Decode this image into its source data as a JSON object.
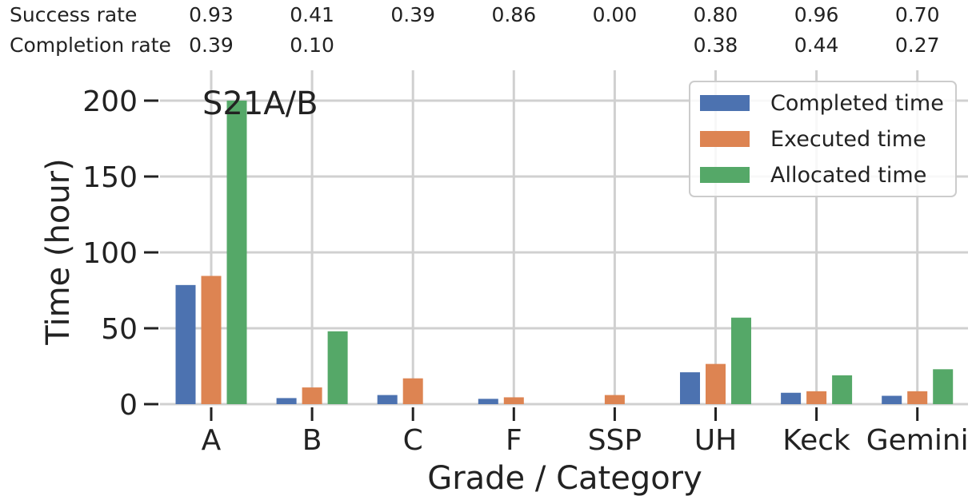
{
  "chart_data": {
    "type": "bar",
    "annotation": "S21A/B",
    "xlabel": "Grade / Category",
    "ylabel": "Time (hour)",
    "ylim": [
      0,
      210
    ],
    "yticks": [
      0,
      50,
      100,
      150,
      200
    ],
    "grid": true,
    "legend_position": "top-right",
    "categories": [
      "A",
      "B",
      "C",
      "F",
      "SSP",
      "UH",
      "Keck",
      "Gemini"
    ],
    "series": [
      {
        "name": "Completed time",
        "color": "#4c72b0",
        "values": [
          78.5,
          4,
          6,
          3.5,
          0,
          21,
          7.5,
          5.5
        ]
      },
      {
        "name": "Executed time",
        "color": "#dd8452",
        "values": [
          84.5,
          11,
          17,
          4.5,
          6,
          26.5,
          8.5,
          8.5
        ]
      },
      {
        "name": "Allocated time",
        "color": "#55a868",
        "values": [
          200,
          48,
          0,
          0,
          0,
          57,
          19,
          23
        ]
      }
    ],
    "rate_rows": [
      {
        "label": "Success rate",
        "values": [
          "0.93",
          "0.41",
          "0.39",
          "0.86",
          "0.00",
          "0.80",
          "0.96",
          "0.70"
        ]
      },
      {
        "label": "Completion rate",
        "values": [
          "0.39",
          "0.10",
          "",
          "",
          "",
          "0.38",
          "0.44",
          "0.27"
        ]
      }
    ]
  }
}
